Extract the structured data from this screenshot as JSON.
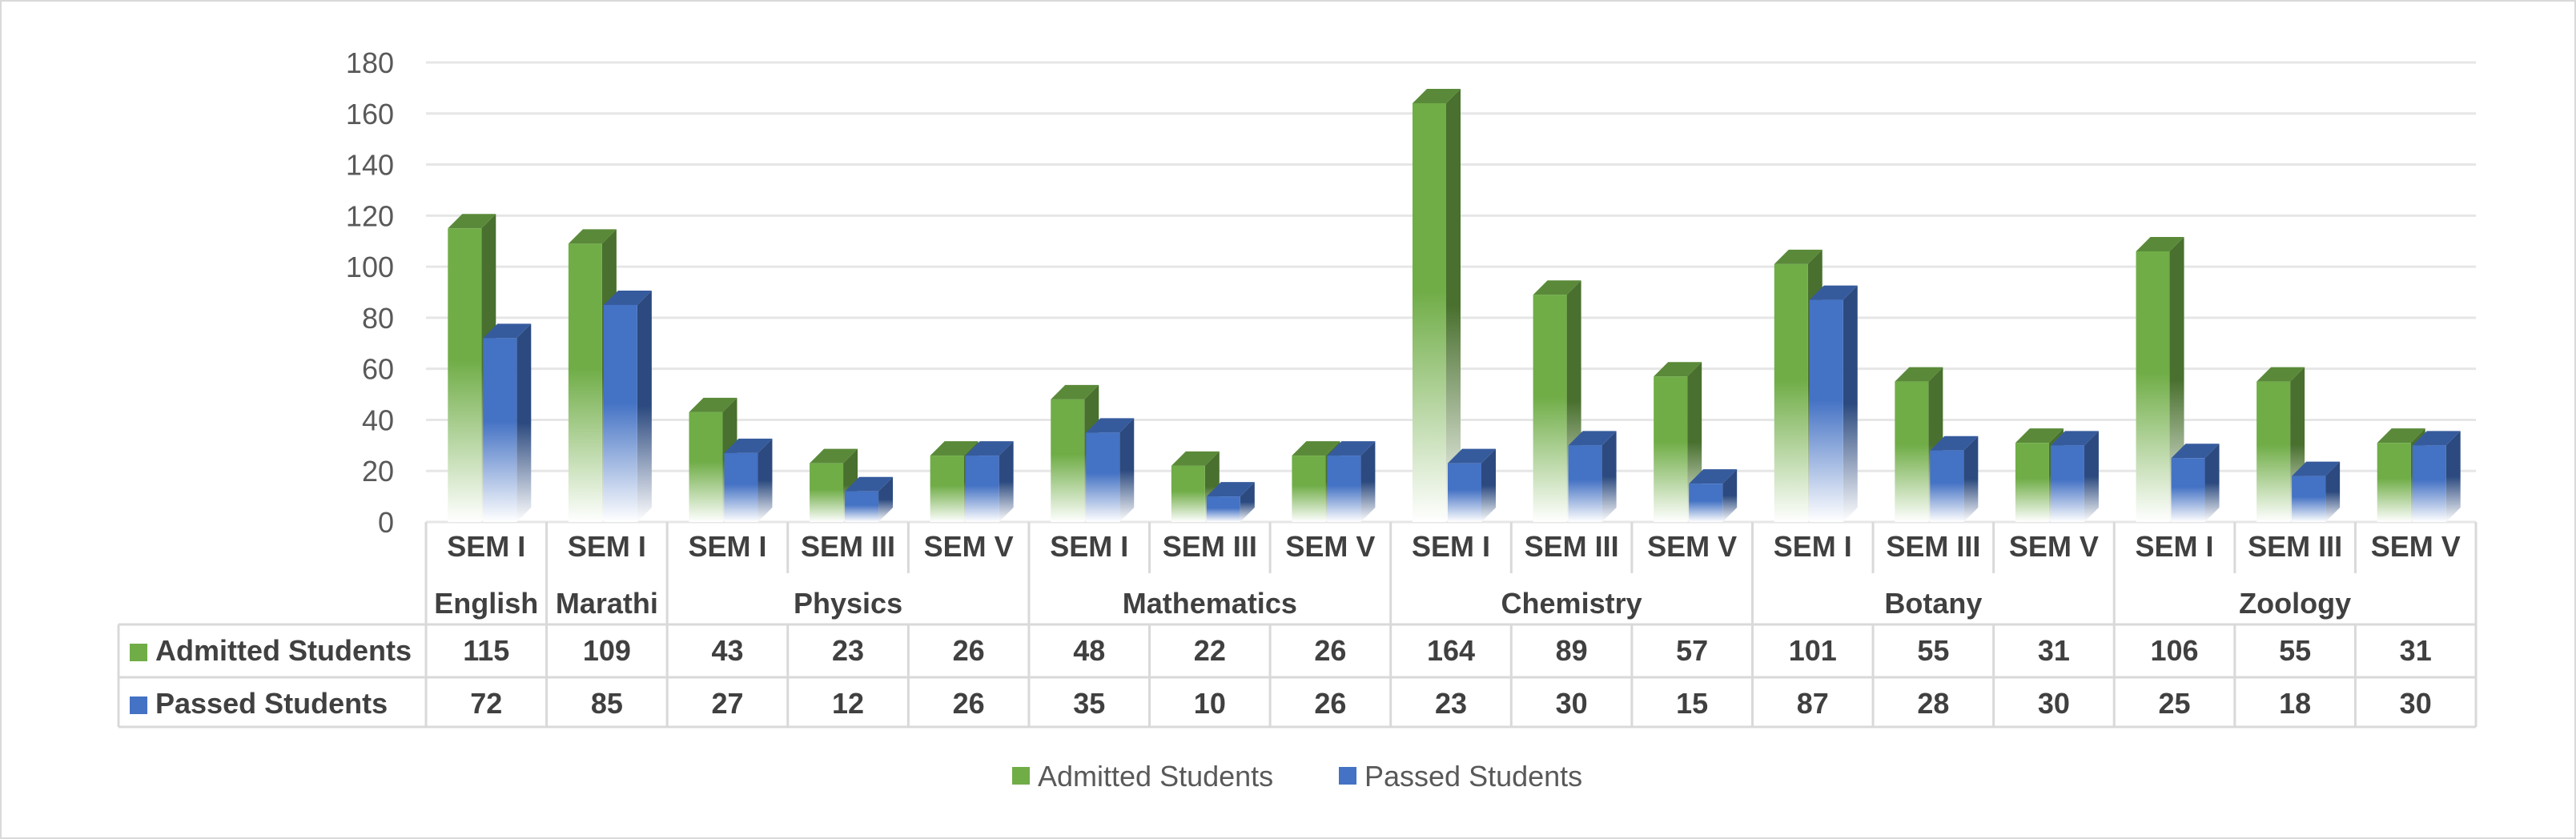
{
  "chart_data": {
    "type": "bar",
    "ylim": [
      0,
      180
    ],
    "yticks": [
      0,
      20,
      40,
      60,
      80,
      100,
      120,
      140,
      160,
      180
    ],
    "grid": true,
    "legend_position": "bottom",
    "categories": [
      "SEM I",
      "SEM I",
      "SEM I",
      "SEM III",
      "SEM V",
      "SEM I",
      "SEM III",
      "SEM V",
      "SEM I",
      "SEM III",
      "SEM V",
      "SEM I",
      "SEM III",
      "SEM V",
      "SEM I",
      "SEM III",
      "SEM V"
    ],
    "groups": [
      {
        "label": "English",
        "span": 1
      },
      {
        "label": "Marathi",
        "span": 1
      },
      {
        "label": "Physics",
        "span": 3
      },
      {
        "label": "Mathematics",
        "span": 3
      },
      {
        "label": "Chemistry",
        "span": 3
      },
      {
        "label": "Botany",
        "span": 3
      },
      {
        "label": "Zoology",
        "span": 3
      }
    ],
    "series": [
      {
        "name": "Admitted Students",
        "color": "#70ad47",
        "values": [
          115,
          109,
          43,
          23,
          26,
          48,
          22,
          26,
          164,
          89,
          57,
          101,
          55,
          31,
          106,
          55,
          31
        ]
      },
      {
        "name": "Passed Students",
        "color": "#4472c4",
        "values": [
          72,
          85,
          27,
          12,
          26,
          35,
          10,
          26,
          23,
          30,
          15,
          87,
          28,
          30,
          25,
          18,
          30
        ]
      }
    ]
  }
}
